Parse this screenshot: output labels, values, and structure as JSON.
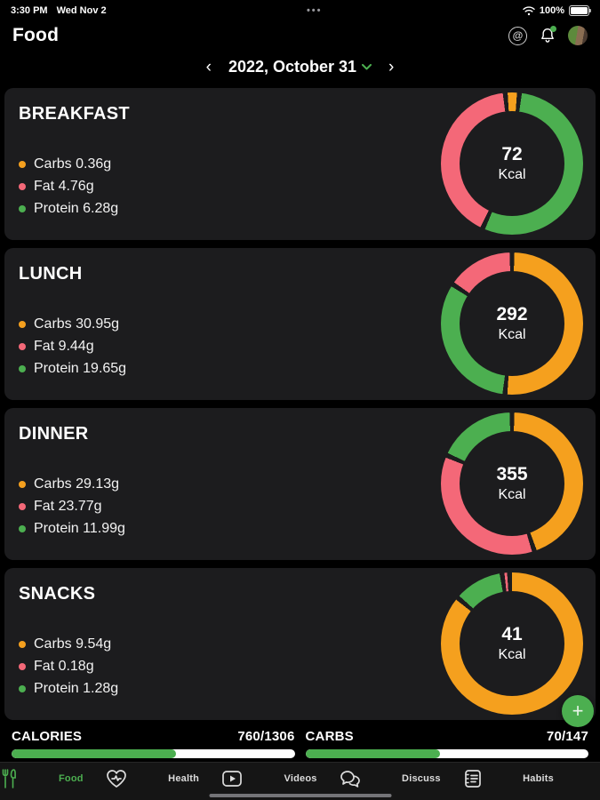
{
  "status_bar": {
    "time": "3:30 PM",
    "date": "Wed Nov 2",
    "center_dots": "•••",
    "battery": "100%"
  },
  "header": {
    "title": "Food"
  },
  "icons": {
    "mentions": "@",
    "prev_arrow": "‹",
    "next_arrow": "›",
    "fab_plus": "+"
  },
  "date_nav": {
    "label": "2022, October 31"
  },
  "colors": {
    "background": "#000000",
    "card_bg": "#1c1c1e",
    "carbs": "#F5A01E",
    "fat": "#F46878",
    "protein": "#4CAF50",
    "accent": "#4CAF50",
    "bar_track": "#FFFFFF"
  },
  "meals": [
    {
      "name": "BREAKFAST",
      "kcal": "72",
      "kcal_unit": "Kcal",
      "legend": [
        {
          "macro": "carbs",
          "label": "Carbs 0.36g"
        },
        {
          "macro": "fat",
          "label": "Fat 4.76g"
        },
        {
          "macro": "protein",
          "label": "Protein 6.28g"
        }
      ],
      "donut_start_deg": 6,
      "donut_segments": [
        {
          "macro": "protein",
          "pct": 55.1
        },
        {
          "macro": "fat",
          "pct": 41.7
        },
        {
          "macro": "carbs",
          "pct": 3.2
        }
      ]
    },
    {
      "name": "LUNCH",
      "kcal": "292",
      "kcal_unit": "Kcal",
      "legend": [
        {
          "macro": "carbs",
          "label": "Carbs 30.95g"
        },
        {
          "macro": "fat",
          "label": "Fat 9.44g"
        },
        {
          "macro": "protein",
          "label": "Protein 19.65g"
        }
      ],
      "donut_start_deg": 0,
      "donut_segments": [
        {
          "macro": "carbs",
          "pct": 51.6
        },
        {
          "macro": "protein",
          "pct": 32.7
        },
        {
          "macro": "fat",
          "pct": 15.7
        }
      ]
    },
    {
      "name": "DINNER",
      "kcal": "355",
      "kcal_unit": "Kcal",
      "legend": [
        {
          "macro": "carbs",
          "label": "Carbs 29.13g"
        },
        {
          "macro": "fat",
          "label": "Fat 23.77g"
        },
        {
          "macro": "protein",
          "label": "Protein 11.99g"
        }
      ],
      "donut_start_deg": 0,
      "donut_segments": [
        {
          "macro": "carbs",
          "pct": 44.9
        },
        {
          "macro": "fat",
          "pct": 36.6
        },
        {
          "macro": "protein",
          "pct": 18.5
        }
      ]
    },
    {
      "name": "SNACKS",
      "kcal": "41",
      "kcal_unit": "Kcal",
      "legend": [
        {
          "macro": "carbs",
          "label": "Carbs 9.54g"
        },
        {
          "macro": "fat",
          "label": "Fat 0.18g"
        },
        {
          "macro": "protein",
          "label": "Protein 1.28g"
        }
      ],
      "donut_start_deg": -2,
      "donut_segments": [
        {
          "macro": "carbs",
          "pct": 86.7
        },
        {
          "macro": "protein",
          "pct": 11.6
        },
        {
          "macro": "fat",
          "pct": 1.7
        }
      ]
    }
  ],
  "progress": [
    {
      "label": "CALORIES",
      "value": "760/1306",
      "pct": 58.2
    },
    {
      "label": "CARBS",
      "value": "70/147",
      "pct": 47.6
    }
  ],
  "tab_bar": [
    {
      "label": "Food",
      "active": true
    },
    {
      "label": "Health",
      "active": false
    },
    {
      "label": "Videos",
      "active": false
    },
    {
      "label": "Discuss",
      "active": false
    },
    {
      "label": "Habits",
      "active": false
    }
  ]
}
